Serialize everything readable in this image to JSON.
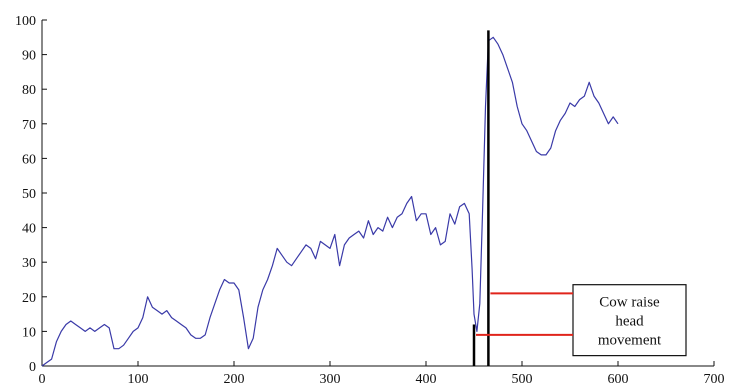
{
  "chart_data": {
    "type": "line",
    "title": "",
    "xlabel": "",
    "ylabel": "",
    "xlim": [
      0,
      700
    ],
    "ylim": [
      0,
      100
    ],
    "x_ticks": [
      0,
      100,
      200,
      300,
      400,
      500,
      600,
      700
    ],
    "y_ticks": [
      0,
      10,
      20,
      30,
      40,
      50,
      60,
      70,
      80,
      90,
      100
    ],
    "grid": false,
    "series": [
      {
        "color": "#3a3aa8",
        "x": [
          0,
          5,
          10,
          15,
          20,
          25,
          30,
          35,
          40,
          45,
          50,
          55,
          60,
          65,
          70,
          75,
          80,
          85,
          90,
          95,
          100,
          105,
          110,
          115,
          120,
          125,
          130,
          135,
          140,
          145,
          150,
          155,
          160,
          165,
          170,
          175,
          180,
          185,
          190,
          195,
          200,
          205,
          210,
          215,
          220,
          225,
          230,
          235,
          240,
          245,
          250,
          255,
          260,
          265,
          270,
          275,
          280,
          285,
          290,
          295,
          300,
          305,
          310,
          315,
          320,
          325,
          330,
          335,
          340,
          345,
          350,
          355,
          360,
          365,
          370,
          375,
          380,
          385,
          390,
          395,
          400,
          405,
          410,
          415,
          420,
          425,
          430,
          435,
          440,
          445,
          448,
          450,
          453,
          456,
          459,
          462,
          465,
          470,
          475,
          480,
          485,
          490,
          495,
          500,
          505,
          510,
          515,
          520,
          525,
          530,
          535,
          540,
          545,
          550,
          555,
          560,
          565,
          570,
          575,
          580,
          585,
          590,
          595,
          600
        ],
        "y": [
          0,
          1,
          2,
          7,
          10,
          12,
          13,
          12,
          11,
          10,
          11,
          10,
          11,
          12,
          11,
          5,
          5,
          6,
          8,
          10,
          11,
          14,
          20,
          17,
          16,
          15,
          16,
          14,
          13,
          12,
          11,
          9,
          8,
          8,
          9,
          14,
          18,
          22,
          25,
          24,
          24,
          22,
          14,
          5,
          8,
          17,
          22,
          25,
          29,
          34,
          32,
          30,
          29,
          31,
          33,
          35,
          34,
          31,
          36,
          35,
          34,
          38,
          29,
          35,
          37,
          38,
          39,
          37,
          42,
          38,
          40,
          39,
          43,
          40,
          43,
          44,
          47,
          49,
          42,
          44,
          44,
          38,
          40,
          35,
          36,
          44,
          41,
          46,
          47,
          44,
          28,
          15,
          10,
          18,
          45,
          75,
          94,
          95,
          93,
          90,
          86,
          82,
          75,
          70,
          68,
          65,
          62,
          61,
          61,
          63,
          68,
          71,
          73,
          76,
          75,
          77,
          78,
          82,
          78,
          76,
          73,
          70,
          72,
          70
        ]
      }
    ],
    "markers": [
      {
        "x": 450,
        "y": 12,
        "color": "#000000"
      },
      {
        "x": 465,
        "y": 97,
        "color": "#000000"
      }
    ],
    "annotation": {
      "text_lines": [
        "Cow raise",
        "head",
        "movement"
      ],
      "pointer_y": [
        21,
        9
      ],
      "pointer_color": "#e0241b"
    }
  }
}
